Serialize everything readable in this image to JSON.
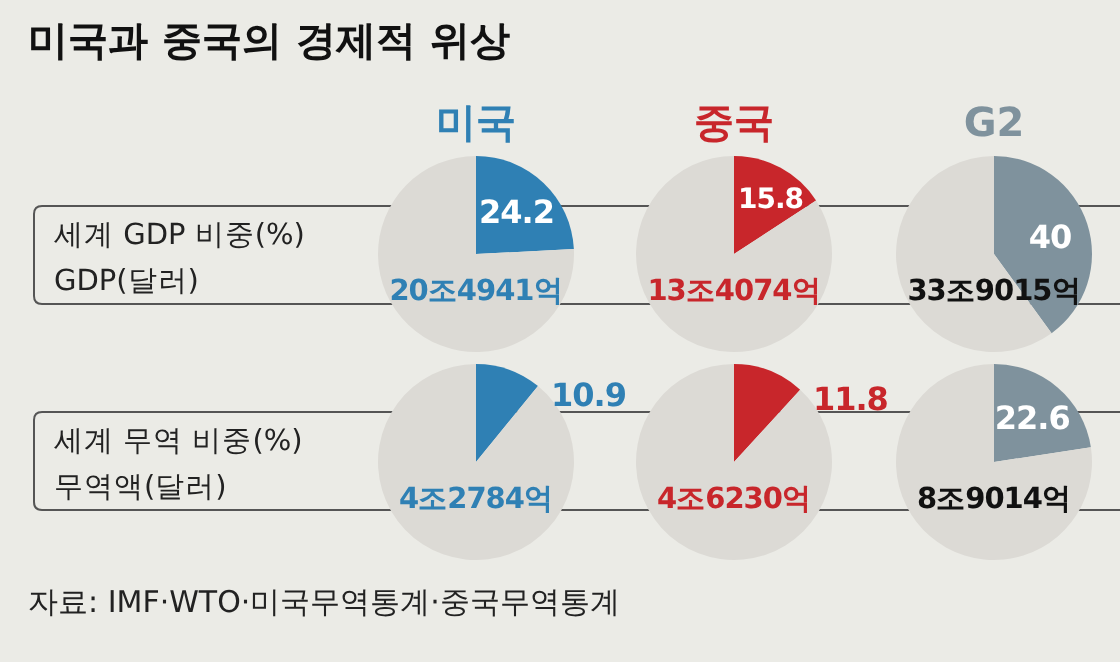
{
  "chart_data": [
    {
      "type": "other",
      "title": "미국과 중국의 경제적 위상",
      "annotations": [
        "세계 GDP 비중(%)",
        "GDP(달러)",
        "세계 무역 비중(%)",
        "무역액(달러)",
        "자료: IMF·WTO·미국무역통계·중국무역통계"
      ]
    },
    {
      "type": "pie",
      "title": "미국",
      "categories": [
        null,
        null
      ],
      "values": [
        24.2,
        75.8
      ],
      "colors": [
        "#2f80b4",
        "#dcdad5"
      ],
      "value_labels": [
        "24.2",
        null
      ],
      "annotations": [
        "20조4941억"
      ]
    },
    {
      "type": "pie",
      "title": "중국",
      "categories": [
        null,
        null
      ],
      "values": [
        15.8,
        84.2
      ],
      "colors": [
        "#c8262b",
        "#dcdad5"
      ],
      "value_labels": [
        "15.8",
        null
      ],
      "annotations": [
        "13조4074억"
      ]
    },
    {
      "type": "pie",
      "title": "G2",
      "categories": [
        null,
        null
      ],
      "values": [
        40,
        60
      ],
      "colors": [
        "#7f929d",
        "#dcdad5"
      ],
      "value_labels": [
        "40",
        null
      ],
      "annotations": [
        "33조9015억"
      ]
    },
    {
      "type": "pie",
      "categories": [
        null,
        null
      ],
      "values": [
        10.9,
        89.1
      ],
      "colors": [
        "#2f80b4",
        "#dcdad5"
      ],
      "value_labels": [
        "10.9",
        null
      ],
      "annotations": [
        "4조2784억"
      ]
    },
    {
      "type": "pie",
      "categories": [
        null,
        null
      ],
      "values": [
        11.8,
        88.2
      ],
      "colors": [
        "#c8262b",
        "#dcdad5"
      ],
      "value_labels": [
        "11.8",
        null
      ],
      "annotations": [
        "4조6230억"
      ]
    },
    {
      "type": "pie",
      "categories": [
        null,
        null
      ],
      "values": [
        22.6,
        77.4
      ],
      "colors": [
        "#7f929d",
        "#dcdad5"
      ],
      "value_labels": [
        "22.6",
        null
      ],
      "annotations": [
        "8조9014억"
      ]
    }
  ]
}
